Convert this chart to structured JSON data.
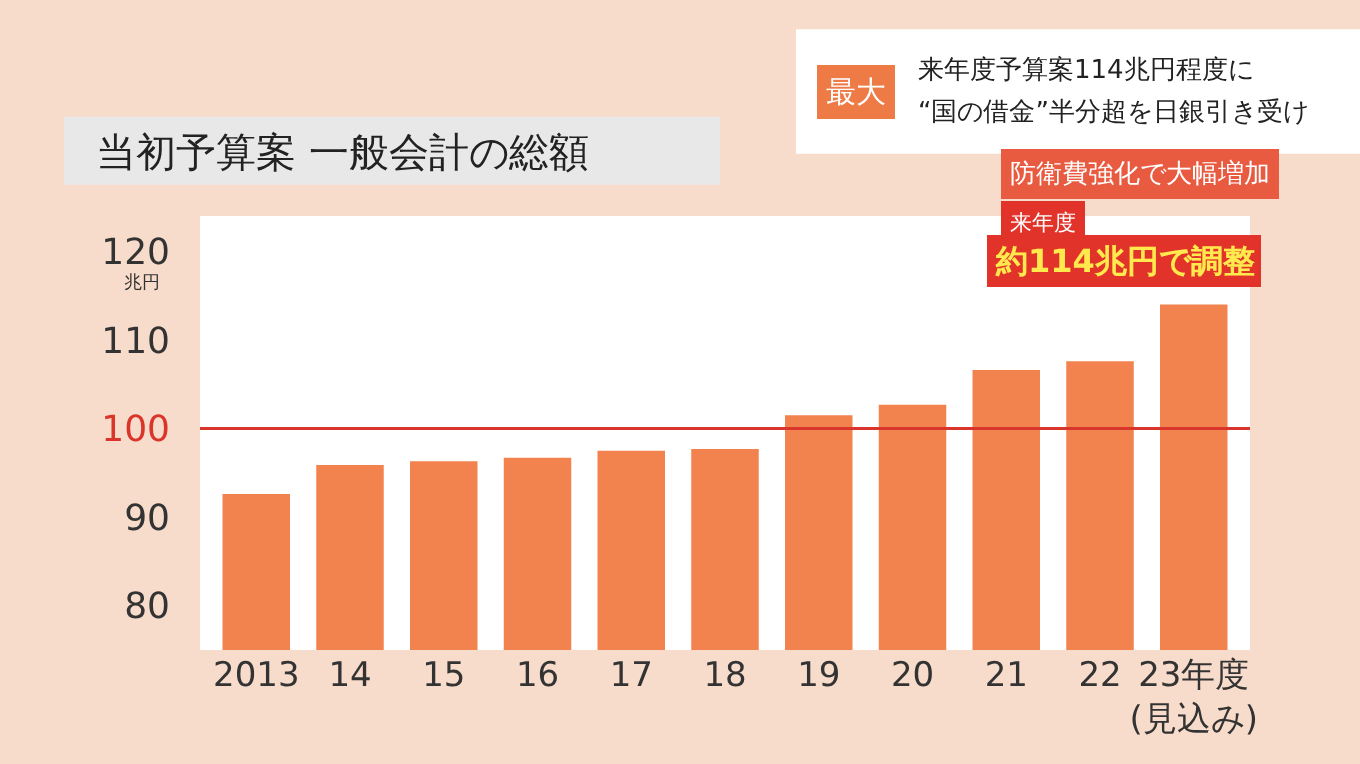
{
  "chart_data": {
    "type": "bar",
    "title": "当初予算案 一般会計の総額",
    "ylabel": "兆円",
    "categories": [
      "2013",
      "14",
      "15",
      "16",
      "17",
      "18",
      "19",
      "20",
      "21",
      "22",
      "23年度\n(見込み)"
    ],
    "values": [
      92.6,
      95.9,
      96.3,
      96.7,
      97.5,
      97.7,
      101.5,
      102.7,
      106.6,
      107.6,
      114.0
    ],
    "color": "#f2834f",
    "ylim": [
      75,
      124
    ],
    "yticks": [
      80,
      90,
      100,
      110,
      120
    ],
    "ref_lines": [
      {
        "axis": "y",
        "value": 100,
        "label": null,
        "color": "#d9352b"
      }
    ],
    "annotations": [
      "最大",
      "来年度予算案114兆円程度に",
      "“国の借金”半分超を日銀引き受け",
      "防衛費強化で大幅増加",
      "来年度",
      {
        "text": "約114兆円で調整",
        "x": "23年度\n(見込み)",
        "y": 114.0
      }
    ]
  }
}
